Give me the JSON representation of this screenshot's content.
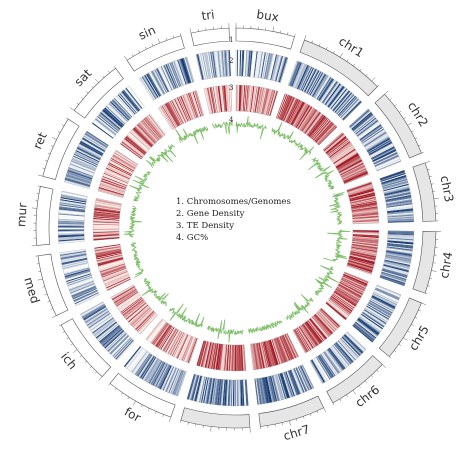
{
  "segments": [
    {
      "name": "bux",
      "is_query": false
    },
    {
      "name": "chr1",
      "is_query": true
    },
    {
      "name": "chr2",
      "is_query": true
    },
    {
      "name": "chr3",
      "is_query": true
    },
    {
      "name": "chr4",
      "is_query": true
    },
    {
      "name": "chr5",
      "is_query": true
    },
    {
      "name": "chr6",
      "is_query": true
    },
    {
      "name": "chr7",
      "is_query": true
    },
    {
      "name": "",
      "is_query": true
    },
    {
      "name": "for",
      "is_query": false
    },
    {
      "name": "ich",
      "is_query": false
    },
    {
      "name": "med",
      "is_query": false
    },
    {
      "name": "mur",
      "is_query": false
    },
    {
      "name": "ret",
      "is_query": false
    },
    {
      "name": "sat",
      "is_query": false
    },
    {
      "name": "sin",
      "is_query": false
    },
    {
      "name": "tri",
      "is_query": false
    }
  ],
  "ring_numbers": [
    "1",
    "2",
    "3",
    "4"
  ],
  "legend": [
    "1. Chromosomes/Genomes",
    "2. Gene Density",
    "3. TE Density",
    "4. GC%"
  ],
  "colors": {
    "query_chrom_fill": "#e6e6e6",
    "chrom_outline": "#555555",
    "gene_density_low": "#ffffff",
    "gene_density_high": "#08306b",
    "te_density_low": "#fff5f0",
    "te_density_high": "#99000d",
    "gc_line": "#7fbf6a"
  }
}
